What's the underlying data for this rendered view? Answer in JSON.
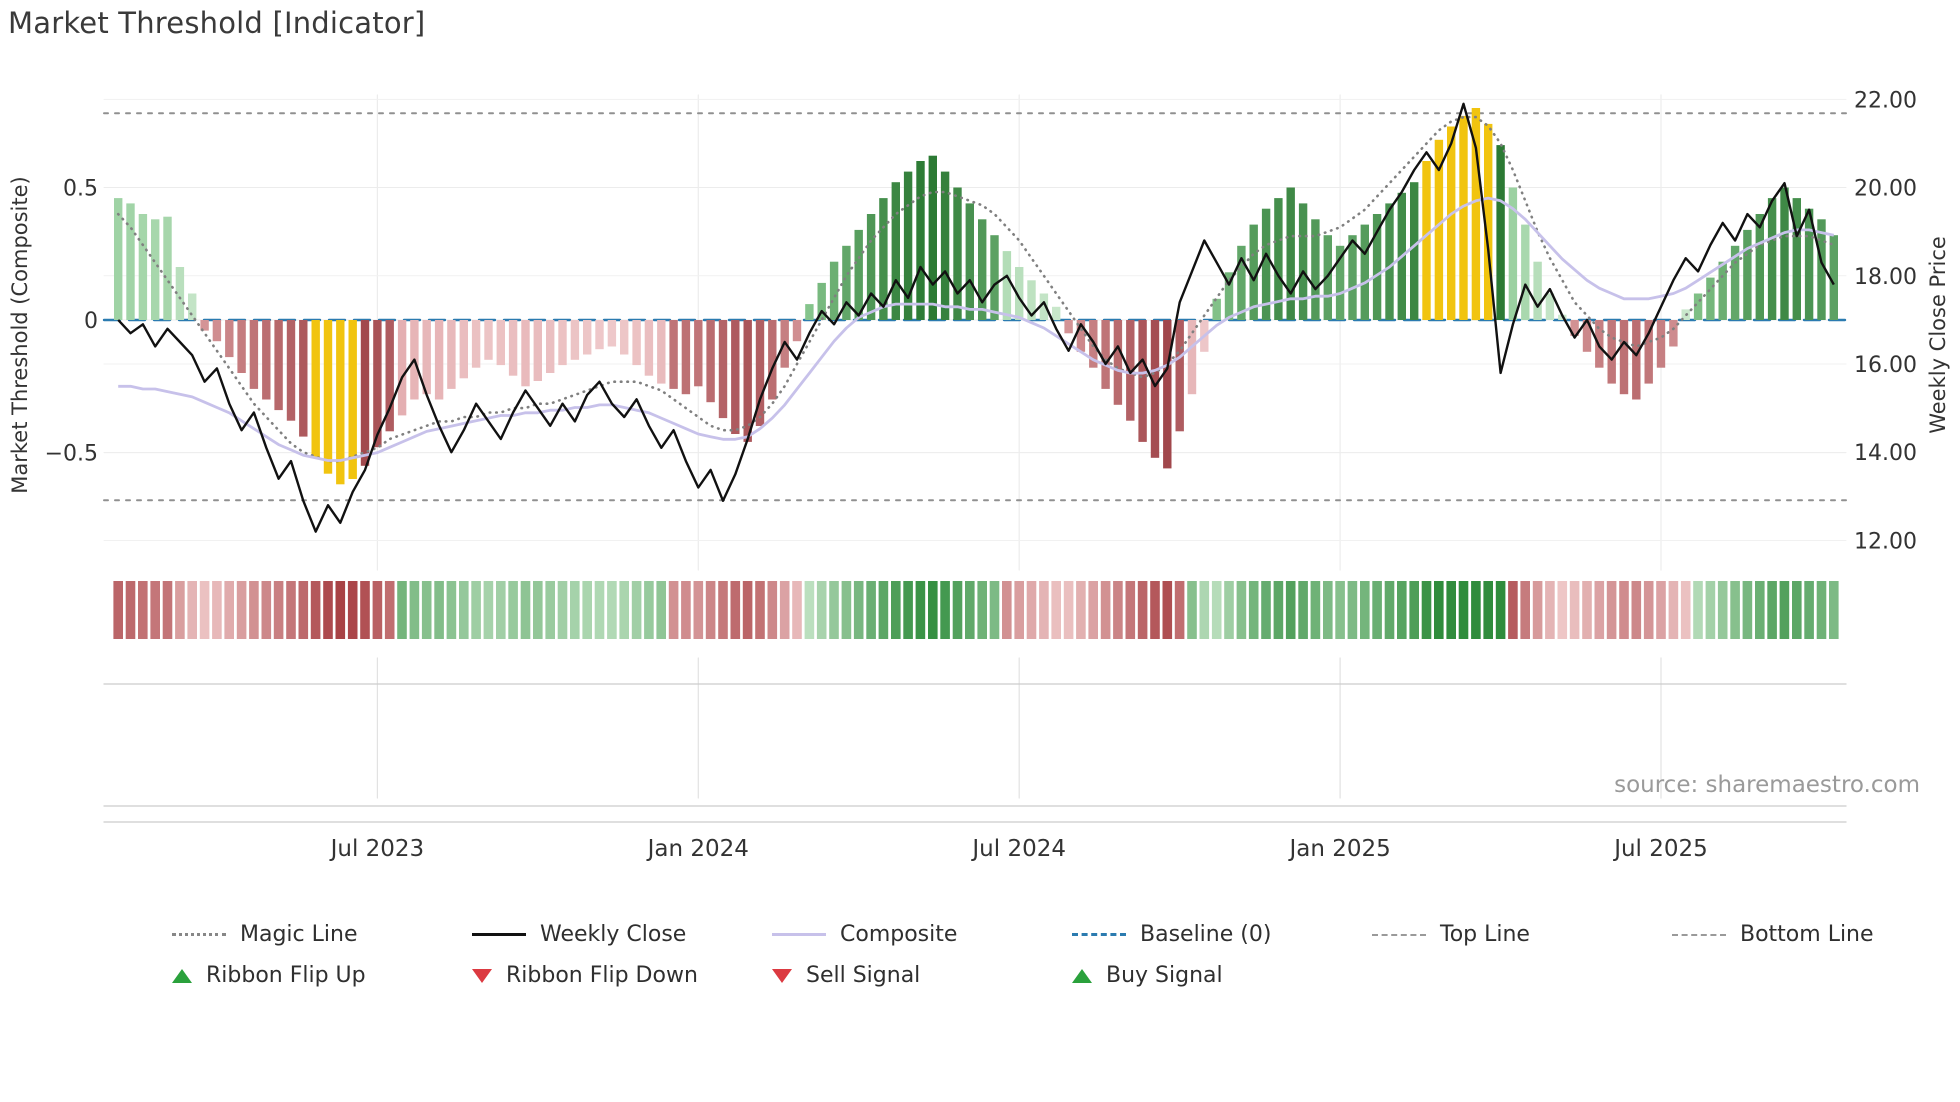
{
  "title": "Market Threshold [Indicator]",
  "source": "source: sharemaestro.com",
  "axes": {
    "left_label": "Market Threshold (Composite)",
    "right_label": "Weekly Close Price",
    "left_ticks": [
      {
        "value": 0.5,
        "label": "0.5"
      },
      {
        "value": 0.0,
        "label": "0"
      },
      {
        "value": -0.5,
        "label": "−0.5"
      }
    ],
    "right_ticks": [
      {
        "value": 22,
        "label": "22.00"
      },
      {
        "value": 20,
        "label": "20.00"
      },
      {
        "value": 18,
        "label": "18.00"
      },
      {
        "value": 16,
        "label": "16.00"
      },
      {
        "value": 14,
        "label": "14.00"
      },
      {
        "value": 12,
        "label": "12.00"
      }
    ],
    "x_ticks": [
      {
        "week": 21,
        "label": "Jul 2023"
      },
      {
        "week": 47,
        "label": "Jan 2024"
      },
      {
        "week": 73,
        "label": "Jul 2024"
      },
      {
        "week": 99,
        "label": "Jan 2025"
      },
      {
        "week": 125,
        "label": "Jul 2025"
      }
    ]
  },
  "colors": {
    "background": "#ffffff",
    "title_text": "#3a3a3a",
    "axis_text": "#333333",
    "grid": "#ececec",
    "panel_line": "#cccccc",
    "weekly_close_line": "#111111",
    "magic_line": "#808080",
    "composite_line": "#c7c1ea",
    "baseline": "#2b7bb0",
    "top_bottom_line": "#909090",
    "bar_pos_light": "#8fcc95",
    "bar_pos_dark": "#2c7a34",
    "bar_pos_weak_light": "#cde9cf",
    "bar_pos_weak_dark": "#9bd1a1",
    "bar_neg_light": "#d89a9c",
    "bar_neg_dark": "#9c3f44",
    "bar_neg_weak_light": "#f2d2d3",
    "bar_neg_weak_dark": "#dfa2a5",
    "bar_highlight": "#f1c40f",
    "ribbon_up_light": "#c9e7cb",
    "ribbon_up_dark": "#2f8c3c",
    "ribbon_down_light": "#f0caca",
    "ribbon_down_dark": "#a53b3f",
    "signal_up": "#2aa13c",
    "signal_down": "#dc3a41",
    "source_text": "#9a9a9a"
  },
  "chart_data": {
    "type": "bar+line",
    "weeks": 140,
    "title": "Market Threshold [Indicator]",
    "xlabel": "",
    "ylabel_left": "Market Threshold (Composite)",
    "ylabel_right": "Weekly Close Price",
    "left_ylim": [
      -0.943,
      0.849
    ],
    "right_ylim": [
      11.33,
      22.1
    ],
    "baseline": 0,
    "top_line": 0.78,
    "bottom_line": -0.68,
    "legend_position": "bottom",
    "grid": true,
    "composite_bars": [
      0.46,
      0.44,
      0.4,
      0.38,
      0.39,
      0.2,
      0.1,
      -0.04,
      -0.08,
      -0.14,
      -0.2,
      -0.26,
      -0.3,
      -0.34,
      -0.38,
      -0.44,
      -0.52,
      -0.58,
      -0.62,
      -0.6,
      -0.55,
      -0.48,
      -0.42,
      -0.36,
      -0.3,
      -0.28,
      -0.3,
      -0.26,
      -0.22,
      -0.18,
      -0.15,
      -0.17,
      -0.21,
      -0.25,
      -0.23,
      -0.2,
      -0.17,
      -0.15,
      -0.13,
      -0.11,
      -0.1,
      -0.13,
      -0.17,
      -0.21,
      -0.24,
      -0.26,
      -0.28,
      -0.25,
      -0.31,
      -0.37,
      -0.43,
      -0.46,
      -0.4,
      -0.3,
      -0.18,
      -0.08,
      0.06,
      0.14,
      0.22,
      0.28,
      0.34,
      0.4,
      0.46,
      0.52,
      0.56,
      0.6,
      0.62,
      0.56,
      0.5,
      0.44,
      0.38,
      0.32,
      0.26,
      0.2,
      0.15,
      0.1,
      0.05,
      -0.05,
      -0.12,
      -0.18,
      -0.26,
      -0.32,
      -0.38,
      -0.46,
      -0.52,
      -0.56,
      -0.42,
      -0.28,
      -0.12,
      0.08,
      0.18,
      0.28,
      0.36,
      0.42,
      0.46,
      0.5,
      0.44,
      0.38,
      0.32,
      0.28,
      0.32,
      0.36,
      0.4,
      0.44,
      0.48,
      0.52,
      0.6,
      0.68,
      0.73,
      0.77,
      0.8,
      0.74,
      0.66,
      0.5,
      0.36,
      0.22,
      0.1,
      0.02,
      -0.06,
      -0.12,
      -0.18,
      -0.24,
      -0.28,
      -0.3,
      -0.24,
      -0.18,
      -0.1,
      0.04,
      0.1,
      0.16,
      0.22,
      0.28,
      0.34,
      0.4,
      0.46,
      0.5,
      0.46,
      0.42,
      0.38,
      0.32
    ],
    "bar_highlight_weeks": [
      16,
      17,
      18,
      19,
      106,
      107,
      108,
      109,
      110,
      111
    ],
    "weekly_close": [
      17.0,
      16.7,
      16.9,
      16.4,
      16.8,
      16.5,
      16.2,
      15.6,
      15.9,
      15.1,
      14.5,
      14.9,
      14.1,
      13.4,
      13.8,
      12.9,
      12.2,
      12.8,
      12.4,
      13.1,
      13.6,
      14.4,
      15.0,
      15.7,
      16.1,
      15.3,
      14.6,
      14.0,
      14.5,
      15.1,
      14.7,
      14.3,
      14.9,
      15.4,
      15.0,
      14.6,
      15.1,
      14.7,
      15.3,
      15.6,
      15.1,
      14.8,
      15.2,
      14.6,
      14.1,
      14.5,
      13.8,
      13.2,
      13.6,
      12.9,
      13.5,
      14.3,
      15.2,
      15.9,
      16.5,
      16.1,
      16.7,
      17.2,
      16.9,
      17.4,
      17.1,
      17.6,
      17.3,
      17.9,
      17.5,
      18.2,
      17.8,
      18.1,
      17.6,
      17.9,
      17.4,
      17.8,
      18.0,
      17.5,
      17.1,
      17.4,
      16.8,
      16.3,
      16.9,
      16.5,
      16.0,
      16.4,
      15.8,
      16.1,
      15.5,
      15.9,
      17.4,
      18.1,
      18.8,
      18.3,
      17.8,
      18.4,
      17.9,
      18.5,
      18.0,
      17.6,
      18.1,
      17.7,
      18.0,
      18.4,
      18.8,
      18.5,
      19.0,
      19.5,
      19.9,
      20.4,
      20.8,
      20.4,
      21.0,
      21.9,
      20.9,
      18.6,
      15.8,
      16.9,
      17.8,
      17.3,
      17.7,
      17.1,
      16.6,
      17.0,
      16.4,
      16.1,
      16.5,
      16.2,
      16.7,
      17.3,
      17.9,
      18.4,
      18.1,
      18.7,
      19.2,
      18.8,
      19.4,
      19.1,
      19.7,
      20.1,
      18.9,
      19.5,
      18.3,
      17.8
    ],
    "magic_line": [
      19.4,
      19.1,
      18.7,
      18.3,
      17.9,
      17.5,
      17.1,
      16.7,
      16.3,
      15.9,
      15.5,
      15.1,
      14.8,
      14.5,
      14.2,
      14.0,
      13.9,
      13.8,
      13.8,
      13.9,
      14.0,
      14.1,
      14.3,
      14.4,
      14.5,
      14.6,
      14.7,
      14.7,
      14.8,
      14.8,
      14.9,
      14.9,
      15.0,
      15.0,
      15.1,
      15.1,
      15.2,
      15.3,
      15.4,
      15.5,
      15.6,
      15.6,
      15.6,
      15.5,
      15.4,
      15.2,
      15.0,
      14.8,
      14.6,
      14.5,
      14.5,
      14.6,
      14.8,
      15.1,
      15.5,
      16.0,
      16.5,
      17.0,
      17.5,
      18.0,
      18.4,
      18.8,
      19.1,
      19.4,
      19.6,
      19.8,
      19.9,
      19.9,
      19.8,
      19.7,
      19.6,
      19.4,
      19.1,
      18.8,
      18.4,
      18.0,
      17.6,
      17.2,
      16.8,
      16.4,
      16.1,
      15.9,
      15.8,
      15.7,
      15.8,
      16.0,
      16.3,
      16.7,
      17.1,
      17.5,
      17.9,
      18.2,
      18.5,
      18.7,
      18.8,
      18.9,
      18.9,
      18.9,
      19.0,
      19.1,
      19.3,
      19.5,
      19.8,
      20.1,
      20.4,
      20.7,
      21.0,
      21.3,
      21.5,
      21.6,
      21.6,
      21.4,
      21.0,
      20.4,
      19.7,
      19.0,
      18.4,
      17.9,
      17.4,
      17.1,
      16.8,
      16.6,
      16.5,
      16.4,
      16.5,
      16.6,
      16.8,
      17.1,
      17.4,
      17.7,
      18.0,
      18.3,
      18.5,
      18.7,
      18.8,
      18.9,
      18.9,
      18.9,
      18.8,
      18.7
    ],
    "composite_line": [
      -0.25,
      -0.25,
      -0.26,
      -0.26,
      -0.27,
      -0.28,
      -0.29,
      -0.31,
      -0.33,
      -0.35,
      -0.38,
      -0.41,
      -0.44,
      -0.47,
      -0.49,
      -0.51,
      -0.52,
      -0.53,
      -0.53,
      -0.52,
      -0.51,
      -0.5,
      -0.48,
      -0.46,
      -0.44,
      -0.42,
      -0.41,
      -0.4,
      -0.39,
      -0.38,
      -0.37,
      -0.36,
      -0.36,
      -0.35,
      -0.35,
      -0.34,
      -0.34,
      -0.33,
      -0.33,
      -0.32,
      -0.32,
      -0.33,
      -0.34,
      -0.35,
      -0.37,
      -0.39,
      -0.41,
      -0.43,
      -0.44,
      -0.45,
      -0.45,
      -0.44,
      -0.41,
      -0.37,
      -0.32,
      -0.26,
      -0.2,
      -0.14,
      -0.08,
      -0.03,
      0.01,
      0.03,
      0.05,
      0.06,
      0.06,
      0.06,
      0.06,
      0.05,
      0.05,
      0.04,
      0.04,
      0.03,
      0.02,
      0.01,
      -0.01,
      -0.03,
      -0.06,
      -0.09,
      -0.12,
      -0.15,
      -0.17,
      -0.19,
      -0.2,
      -0.2,
      -0.19,
      -0.17,
      -0.14,
      -0.1,
      -0.06,
      -0.02,
      0.01,
      0.03,
      0.05,
      0.06,
      0.07,
      0.08,
      0.08,
      0.09,
      0.09,
      0.1,
      0.12,
      0.14,
      0.17,
      0.2,
      0.24,
      0.28,
      0.32,
      0.36,
      0.4,
      0.43,
      0.45,
      0.46,
      0.45,
      0.42,
      0.38,
      0.33,
      0.28,
      0.23,
      0.19,
      0.15,
      0.12,
      0.1,
      0.08,
      0.08,
      0.08,
      0.09,
      0.1,
      0.12,
      0.15,
      0.18,
      0.21,
      0.24,
      0.27,
      0.29,
      0.31,
      0.33,
      0.34,
      0.34,
      0.33,
      0.32
    ],
    "ribbon_segments": [
      {
        "from": 0,
        "to": 22,
        "state": "down"
      },
      {
        "from": 23,
        "to": 44,
        "state": "up"
      },
      {
        "from": 45,
        "to": 55,
        "state": "down"
      },
      {
        "from": 56,
        "to": 71,
        "state": "up"
      },
      {
        "from": 72,
        "to": 86,
        "state": "down"
      },
      {
        "from": 87,
        "to": 112,
        "state": "up"
      },
      {
        "from": 113,
        "to": 127,
        "state": "down"
      },
      {
        "from": 128,
        "to": 139,
        "state": "up"
      }
    ],
    "signals": {
      "ribbon_flip_up_weeks": [
        23,
        56,
        87,
        128
      ],
      "ribbon_flip_down_weeks": [
        45,
        72,
        113
      ],
      "buy_signal_weeks": [
        14,
        15,
        16,
        17,
        18
      ],
      "sell_signal_weeks": [
        106,
        107,
        108,
        109,
        110,
        111
      ]
    }
  },
  "legend": {
    "row1": [
      {
        "label": "Magic Line"
      },
      {
        "label": "Weekly Close"
      },
      {
        "label": "Composite"
      },
      {
        "label": "Baseline (0)"
      },
      {
        "label": "Top Line"
      },
      {
        "label": "Bottom Line"
      }
    ],
    "row2": [
      {
        "label": "Ribbon Flip Up"
      },
      {
        "label": "Ribbon Flip Down"
      },
      {
        "label": "Sell Signal"
      },
      {
        "label": "Buy Signal"
      }
    ]
  }
}
